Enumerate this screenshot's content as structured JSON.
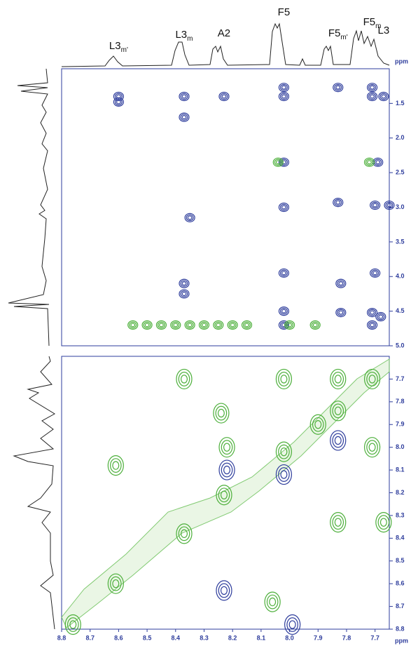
{
  "chart_data": [
    {
      "type": "contour",
      "xlabel": "ppm",
      "xlim": [
        8.8,
        7.65
      ],
      "ylim": [
        1.0,
        5.0
      ],
      "yticks": [
        1.5,
        {
          "value": 2.0,
          "label": "2.0"
        },
        2.5,
        {
          "value": 3.0,
          "label": "3.0"
        },
        3.5,
        {
          "value": 4.0,
          "label": "4.0"
        },
        4.5,
        {
          "value": 5.0,
          "label": "5.0"
        }
      ],
      "peak_labels": [
        {
          "text": "L3",
          "sub": "m'",
          "x": 8.6
        },
        {
          "text": "L3",
          "sub": "m",
          "x": 8.37
        },
        {
          "text": "A2",
          "x": 8.23
        },
        {
          "text": "F5",
          "x": 8.02
        },
        {
          "text": "F5",
          "sub": "m'",
          "x": 7.83
        },
        {
          "text": "F5",
          "sub": "m",
          "x": 7.71
        },
        {
          "text": "L3",
          "x": 7.67
        }
      ],
      "series": [
        {
          "color": "#2e3d9c",
          "x": [
            8.6,
            8.6,
            8.37,
            8.23,
            8.02,
            8.02,
            7.83,
            7.71,
            7.67,
            7.71,
            8.37,
            8.02,
            7.69,
            8.02,
            7.83,
            7.7,
            7.65,
            8.35,
            8.02,
            7.7,
            7.82,
            8.37,
            8.37,
            8.02,
            7.71,
            7.68,
            7.82,
            8.02,
            7.71
          ],
          "y": [
            1.4,
            1.48,
            1.4,
            1.4,
            1.4,
            1.27,
            1.27,
            1.27,
            1.4,
            1.4,
            1.7,
            2.35,
            2.35,
            3.0,
            2.93,
            2.97,
            2.97,
            3.15,
            3.95,
            3.95,
            4.1,
            4.1,
            4.25,
            4.5,
            4.52,
            4.58,
            4.52,
            4.7,
            4.7
          ]
        },
        {
          "color": "#4caf3a",
          "x": [
            8.04,
            7.72,
            8.55,
            8.5,
            8.45,
            8.4,
            8.35,
            8.3,
            8.25,
            8.2,
            8.15,
            8.0,
            7.91
          ],
          "y": [
            2.35,
            2.35,
            4.7,
            4.7,
            4.7,
            4.7,
            4.7,
            4.7,
            4.7,
            4.7,
            4.7,
            4.7,
            4.7
          ]
        }
      ]
    },
    {
      "type": "contour",
      "xlabel": "ppm",
      "xlim": [
        8.8,
        7.65
      ],
      "ylim": [
        7.6,
        8.8
      ],
      "xticks": [
        8.8,
        8.7,
        8.6,
        8.5,
        8.4,
        8.3,
        8.2,
        8.1,
        {
          "value": 8.0,
          "label": "8.0"
        },
        7.9,
        7.8,
        7.7
      ],
      "yticks": [
        7.7,
        7.8,
        7.9,
        {
          "value": 8.0,
          "label": "8.0"
        },
        8.1,
        8.2,
        8.3,
        8.4,
        8.5,
        8.6,
        8.7,
        8.8
      ],
      "series": [
        {
          "color": "#4caf3a",
          "x": [
            8.76,
            8.61,
            8.37,
            8.23,
            8.02,
            7.83,
            8.37,
            8.24,
            8.22,
            8.02,
            7.71,
            7.71,
            7.83,
            7.67,
            8.61,
            8.06,
            7.83,
            7.9
          ],
          "y": [
            8.78,
            8.6,
            8.38,
            8.21,
            8.02,
            7.84,
            7.7,
            7.85,
            8.0,
            7.7,
            7.7,
            8.0,
            8.33,
            8.33,
            8.08,
            8.68,
            7.7,
            7.9
          ]
        },
        {
          "color": "#2e3d9c",
          "x": [
            8.22,
            8.23,
            7.99,
            8.02,
            7.83
          ],
          "y": [
            8.1,
            8.63,
            8.78,
            8.12,
            7.97
          ]
        }
      ]
    }
  ]
}
